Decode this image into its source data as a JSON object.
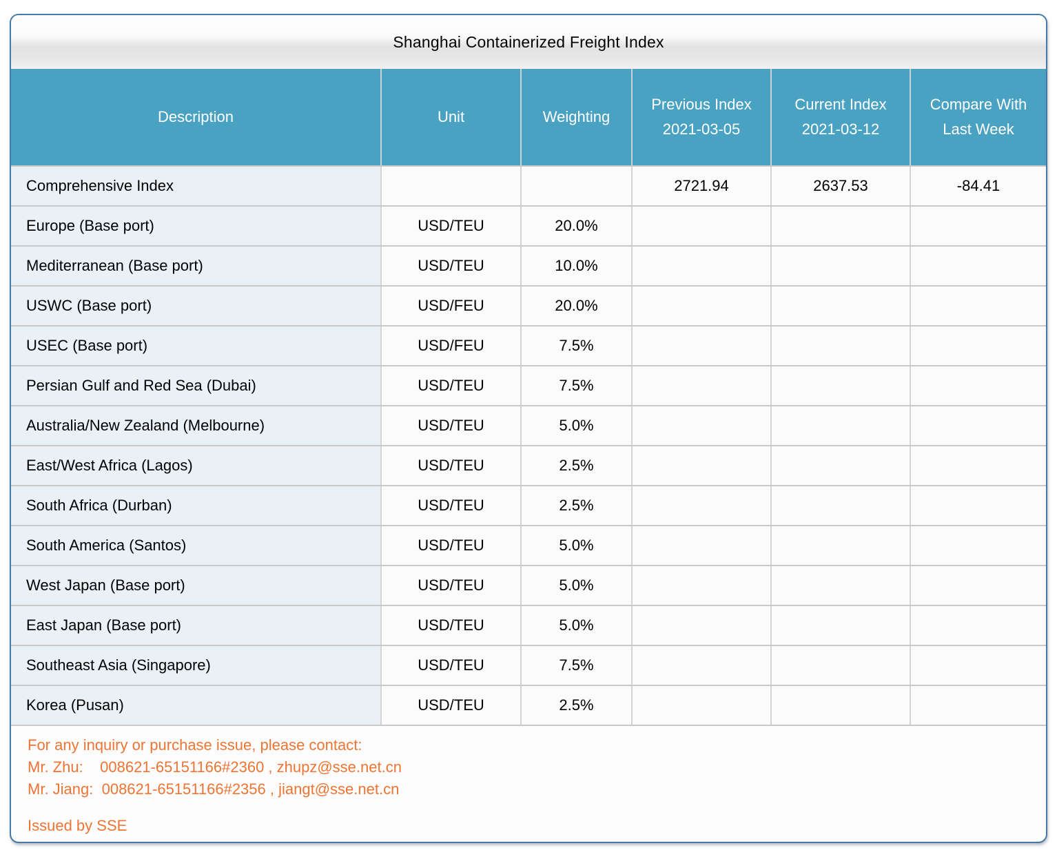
{
  "title": "Shanghai Containerized Freight Index",
  "table": {
    "columns": [
      "Description",
      "Unit",
      "Weighting",
      "Previous Index\n2021-03-05",
      "Current Index\n2021-03-12",
      "Compare With\nLast Week"
    ],
    "rows": [
      {
        "description": "Comprehensive Index",
        "unit": "",
        "weighting": "",
        "previous": "2721.94",
        "current": "2637.53",
        "compare": "-84.41"
      },
      {
        "description": "Europe (Base port)",
        "unit": "USD/TEU",
        "weighting": "20.0%",
        "previous": "",
        "current": "",
        "compare": ""
      },
      {
        "description": "Mediterranean (Base port)",
        "unit": "USD/TEU",
        "weighting": "10.0%",
        "previous": "",
        "current": "",
        "compare": ""
      },
      {
        "description": "USWC (Base port)",
        "unit": "USD/FEU",
        "weighting": "20.0%",
        "previous": "",
        "current": "",
        "compare": ""
      },
      {
        "description": "USEC (Base port)",
        "unit": "USD/FEU",
        "weighting": "7.5%",
        "previous": "",
        "current": "",
        "compare": ""
      },
      {
        "description": "Persian Gulf and Red Sea (Dubai)",
        "unit": "USD/TEU",
        "weighting": "7.5%",
        "previous": "",
        "current": "",
        "compare": ""
      },
      {
        "description": "Australia/New Zealand (Melbourne)",
        "unit": "USD/TEU",
        "weighting": "5.0%",
        "previous": "",
        "current": "",
        "compare": ""
      },
      {
        "description": "East/West Africa (Lagos)",
        "unit": "USD/TEU",
        "weighting": "2.5%",
        "previous": "",
        "current": "",
        "compare": ""
      },
      {
        "description": "South Africa (Durban)",
        "unit": "USD/TEU",
        "weighting": "2.5%",
        "previous": "",
        "current": "",
        "compare": ""
      },
      {
        "description": "South America (Santos)",
        "unit": "USD/TEU",
        "weighting": "5.0%",
        "previous": "",
        "current": "",
        "compare": ""
      },
      {
        "description": "West Japan (Base port)",
        "unit": "USD/TEU",
        "weighting": "5.0%",
        "previous": "",
        "current": "",
        "compare": ""
      },
      {
        "description": "East Japan (Base port)",
        "unit": "USD/TEU",
        "weighting": "5.0%",
        "previous": "",
        "current": "",
        "compare": ""
      },
      {
        "description": "Southeast Asia (Singapore)",
        "unit": "USD/TEU",
        "weighting": "7.5%",
        "previous": "",
        "current": "",
        "compare": ""
      },
      {
        "description": "Korea (Pusan)",
        "unit": "USD/TEU",
        "weighting": "2.5%",
        "previous": "",
        "current": "",
        "compare": ""
      }
    ]
  },
  "footer": {
    "intro": "For any inquiry or purchase issue, please contact:",
    "contacts": [
      "Mr. Zhu:    008621-65151166#2360 , zhupz@sse.net.cn",
      "Mr. Jiang:  008621-65151166#2356 , jiangt@sse.net.cn"
    ],
    "issued_by": "Issued by SSE"
  },
  "colors": {
    "frame_border": "#4579a7",
    "table_header_bg": "#4aa2c3",
    "description_cell_bg": "#e9f1f7",
    "cell_bg": "#fbfbfb",
    "grid_line": "#c9c9c9",
    "footer_text": "#ee7433"
  }
}
